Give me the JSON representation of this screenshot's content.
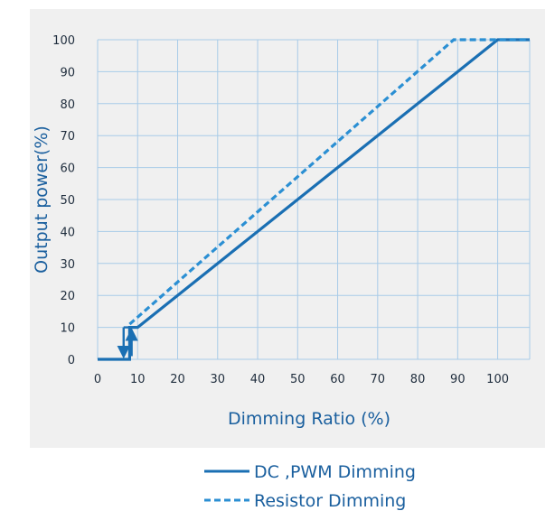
{
  "chart_data": {
    "type": "line",
    "xlabel": "Dimming  Ratio (%)",
    "ylabel": "Output power(%)",
    "xlim": [
      0,
      108
    ],
    "ylim": [
      0,
      100
    ],
    "x_ticks": [
      0,
      10,
      20,
      30,
      40,
      50,
      60,
      70,
      80,
      90,
      100
    ],
    "y_ticks": [
      0,
      10,
      20,
      30,
      40,
      50,
      60,
      70,
      80,
      90,
      100
    ],
    "grid": true,
    "legend_position": "bottom",
    "colors": {
      "line": "#1a6fb3",
      "dashed": "#2b8fd3",
      "plot_bg": "#f0f0f0",
      "grid": "#a8cbe8"
    },
    "series": [
      {
        "name": "DC ,PWM Dimming",
        "style": "solid",
        "x": [
          0,
          8,
          8,
          10,
          100,
          108
        ],
        "y": [
          0,
          0,
          10,
          10,
          100,
          100
        ]
      },
      {
        "name": "Resistor Dimming",
        "style": "dashed",
        "x": [
          8,
          89,
          108
        ],
        "y": [
          11,
          100,
          100
        ]
      }
    ],
    "annotations": [
      {
        "type": "arrow",
        "direction": "down",
        "x": 6.5,
        "y_from": 10,
        "y_to": 1
      },
      {
        "type": "arrow",
        "direction": "up",
        "x": 8.5,
        "y_from": 1,
        "y_to": 9
      },
      {
        "type": "segment",
        "x": [
          6.5,
          8
        ],
        "y": [
          10,
          10
        ]
      }
    ]
  }
}
